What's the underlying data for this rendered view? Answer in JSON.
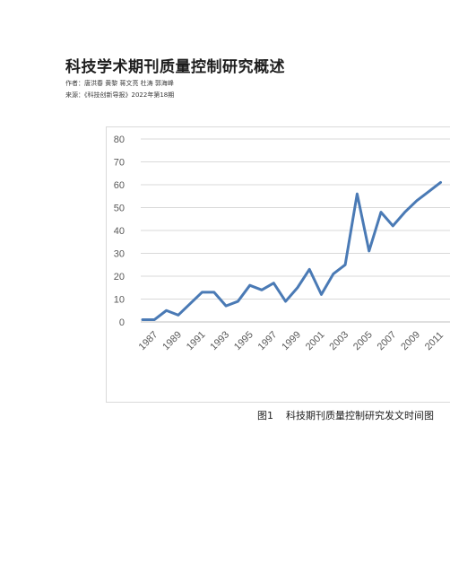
{
  "document": {
    "title": "科技学术期刊质量控制研究概述",
    "authors_line": "作者：唐洪春 黄黎 蒋文亮 杜涛 郭海峰",
    "source_line": "来源：《科技创新导报》2022年第18期"
  },
  "figure": {
    "number": "图1",
    "caption": "科技期刊质量控制研究发文时间图"
  },
  "chart_data": {
    "type": "line",
    "title": "",
    "xlabel": "",
    "ylabel": "",
    "ylim": [
      0,
      80
    ],
    "yticks": [
      0,
      10,
      20,
      30,
      40,
      50,
      60,
      70,
      80
    ],
    "grid": true,
    "line_color": "#4a7ab5",
    "x": [
      1987,
      1988,
      1989,
      1990,
      1991,
      1992,
      1993,
      1994,
      1995,
      1996,
      1997,
      1998,
      1999,
      2000,
      2001,
      2002,
      2003,
      2004,
      2005,
      2006,
      2007,
      2008,
      2009,
      2010,
      2011,
      2012
    ],
    "values": [
      1,
      1,
      5,
      3,
      8,
      13,
      13,
      7,
      9,
      16,
      14,
      17,
      9,
      15,
      23,
      12,
      21,
      25,
      56,
      31,
      48,
      42,
      48,
      53,
      57,
      61
    ],
    "xtick_labels": [
      "1987",
      "1989",
      "1991",
      "1993",
      "1995",
      "1997",
      "1999",
      "2001",
      "2003",
      "2005",
      "2007",
      "2009",
      "2011"
    ]
  }
}
